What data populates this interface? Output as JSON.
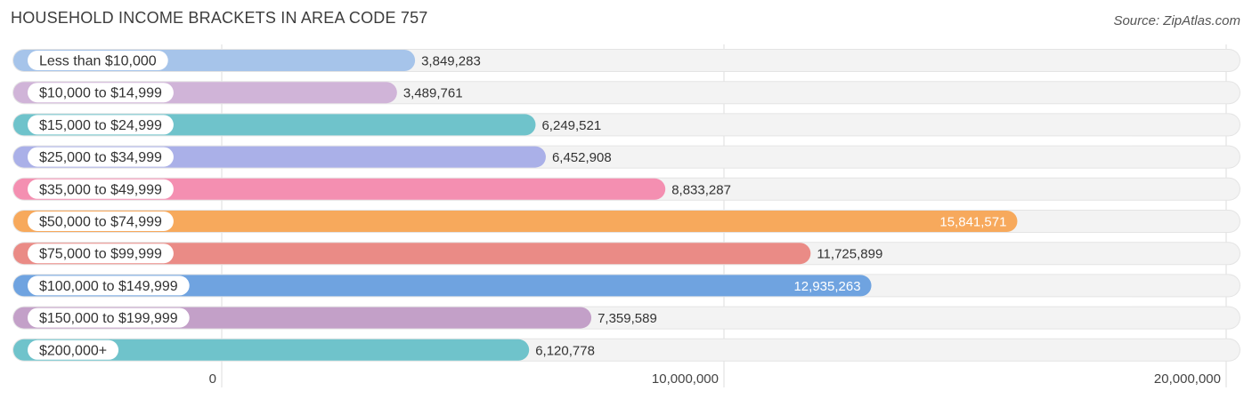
{
  "header": {
    "title": "HOUSEHOLD INCOME BRACKETS IN AREA CODE 757",
    "source": "Source: ZipAtlas.com"
  },
  "chart_data": {
    "type": "bar",
    "orientation": "horizontal",
    "title": "HOUSEHOLD INCOME BRACKETS IN AREA CODE 757",
    "xlabel": "",
    "ylabel": "",
    "xlim": [
      0,
      20000000
    ],
    "grid": true,
    "categories": [
      "Less than $10,000",
      "$10,000 to $14,999",
      "$15,000 to $24,999",
      "$25,000 to $34,999",
      "$35,000 to $49,999",
      "$50,000 to $74,999",
      "$75,000 to $99,999",
      "$100,000 to $149,999",
      "$150,000 to $199,999",
      "$200,000+"
    ],
    "values": [
      3849283,
      3489761,
      6249521,
      6452908,
      8833287,
      15841571,
      11725899,
      12935263,
      7359589,
      6120778
    ],
    "value_labels": [
      "3,849,283",
      "3,489,761",
      "6,249,521",
      "6,452,908",
      "8,833,287",
      "15,841,571",
      "11,725,899",
      "12,935,263",
      "7,359,589",
      "6,120,778"
    ],
    "colors": [
      "#a6c4ea",
      "#d0b4d8",
      "#6fc3cb",
      "#aab0e8",
      "#f48fb1",
      "#f7a95c",
      "#ea8b86",
      "#6fa3e0",
      "#c3a0c8",
      "#6fc3cb"
    ],
    "x_ticks": [
      0,
      10000000,
      20000000
    ],
    "x_tick_labels": [
      "0",
      "10,000,000",
      "20,000,000"
    ]
  }
}
